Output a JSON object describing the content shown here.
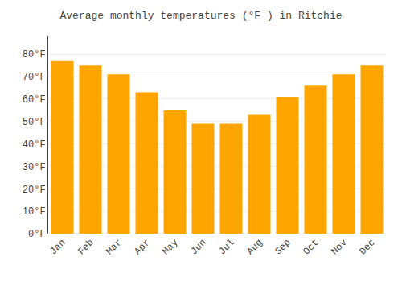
{
  "chart_data": {
    "type": "bar",
    "title": "Average monthly temperatures (°F ) in Ritchie",
    "categories": [
      "Jan",
      "Feb",
      "Mar",
      "Apr",
      "May",
      "Jun",
      "Jul",
      "Aug",
      "Sep",
      "Oct",
      "Nov",
      "Dec"
    ],
    "values": [
      77,
      75,
      71,
      63,
      55,
      49,
      49,
      53,
      61,
      66,
      71,
      75
    ],
    "color": "#FFA500",
    "ylim": [
      0,
      88
    ],
    "yticks": [
      {
        "value": 0,
        "label": "0°F"
      },
      {
        "value": 10,
        "label": "10°F"
      },
      {
        "value": 20,
        "label": "20°F"
      },
      {
        "value": 30,
        "label": "30°F"
      },
      {
        "value": 40,
        "label": "40°F"
      },
      {
        "value": 50,
        "label": "50°F"
      },
      {
        "value": 60,
        "label": "60°F"
      },
      {
        "value": 70,
        "label": "70°F"
      },
      {
        "value": 80,
        "label": "80°F"
      }
    ],
    "grid": true
  }
}
